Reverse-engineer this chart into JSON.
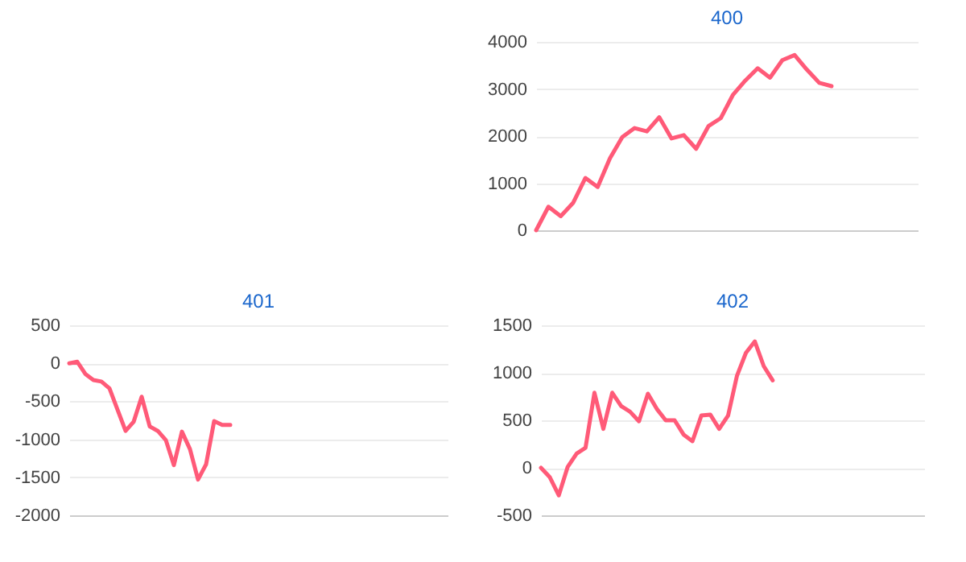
{
  "chart_data": [
    {
      "type": "line",
      "title": "400",
      "categories": [
        null,
        null,
        null,
        null,
        null,
        null,
        null,
        null,
        null,
        null,
        null,
        null,
        null,
        null,
        null,
        null,
        null,
        null,
        null,
        null,
        null,
        null,
        null,
        null,
        null,
        null,
        null,
        null,
        null,
        null,
        null,
        null
      ],
      "series": [
        {
          "color": "#ff5a78",
          "values": [
            0,
            500,
            300,
            580,
            1110,
            920,
            1530,
            1980,
            2170,
            2100,
            2400,
            1950,
            2020,
            1730,
            2210,
            2380,
            2880,
            3180,
            3440,
            3240,
            3610,
            3720,
            3410,
            3130,
            3060,
            null,
            null,
            null,
            null,
            null,
            null,
            null
          ]
        }
      ],
      "ylim": [
        0,
        4000
      ],
      "yticks": [
        0,
        1000,
        2000,
        3000,
        4000
      ],
      "grid": "y",
      "tick_labels": "y",
      "legend": false,
      "marker": "none",
      "line_style": "solid"
    },
    {
      "type": "line",
      "title": "401",
      "categories": [
        null,
        null,
        null,
        null,
        null,
        null,
        null,
        null,
        null,
        null,
        null,
        null,
        null,
        null,
        null,
        null,
        null,
        null,
        null,
        null,
        null,
        null,
        null,
        null,
        null,
        null,
        null,
        null,
        null,
        null,
        null,
        null,
        null,
        null,
        null,
        null,
        null,
        null,
        null,
        null,
        null,
        null,
        null,
        null,
        null,
        null,
        null,
        null
      ],
      "series": [
        {
          "color": "#ff5a78",
          "values": [
            0,
            20,
            -140,
            -220,
            -240,
            -330,
            -610,
            -890,
            -770,
            -440,
            -830,
            -890,
            -1010,
            -1340,
            -900,
            -1130,
            -1530,
            -1330,
            -760,
            -810,
            -810,
            null,
            null,
            null,
            null,
            null,
            null,
            null,
            null,
            null,
            null,
            null,
            null,
            null,
            null,
            null,
            null,
            null,
            null,
            null,
            null,
            null,
            null,
            null,
            null,
            null,
            null,
            null
          ]
        }
      ],
      "ylim": [
        -2000,
        500
      ],
      "yticks": [
        -2000,
        -1500,
        -1000,
        -500,
        0,
        500
      ],
      "grid": "y",
      "tick_labels": "y",
      "legend": false,
      "marker": "none",
      "line_style": "solid"
    },
    {
      "type": "line",
      "title": "402",
      "categories": [
        null,
        null,
        null,
        null,
        null,
        null,
        null,
        null,
        null,
        null,
        null,
        null,
        null,
        null,
        null,
        null,
        null,
        null,
        null,
        null,
        null,
        null,
        null,
        null,
        null,
        null,
        null,
        null,
        null,
        null,
        null,
        null,
        null,
        null,
        null,
        null,
        null,
        null,
        null,
        null,
        null,
        null,
        null,
        null
      ],
      "series": [
        {
          "color": "#ff5a78",
          "values": [
            0,
            -100,
            -290,
            10,
            150,
            210,
            790,
            410,
            790,
            650,
            590,
            490,
            780,
            620,
            500,
            500,
            350,
            280,
            550,
            560,
            410,
            550,
            970,
            1210,
            1330,
            1070,
            920,
            null,
            null,
            null,
            null,
            null,
            null,
            null,
            null,
            null,
            null,
            null,
            null,
            null,
            null,
            null,
            null,
            null
          ]
        }
      ],
      "ylim": [
        -500,
        1500
      ],
      "yticks": [
        -500,
        0,
        500,
        1000,
        1500
      ],
      "grid": "y",
      "tick_labels": "y",
      "legend": false,
      "marker": "none",
      "line_style": "solid"
    }
  ]
}
